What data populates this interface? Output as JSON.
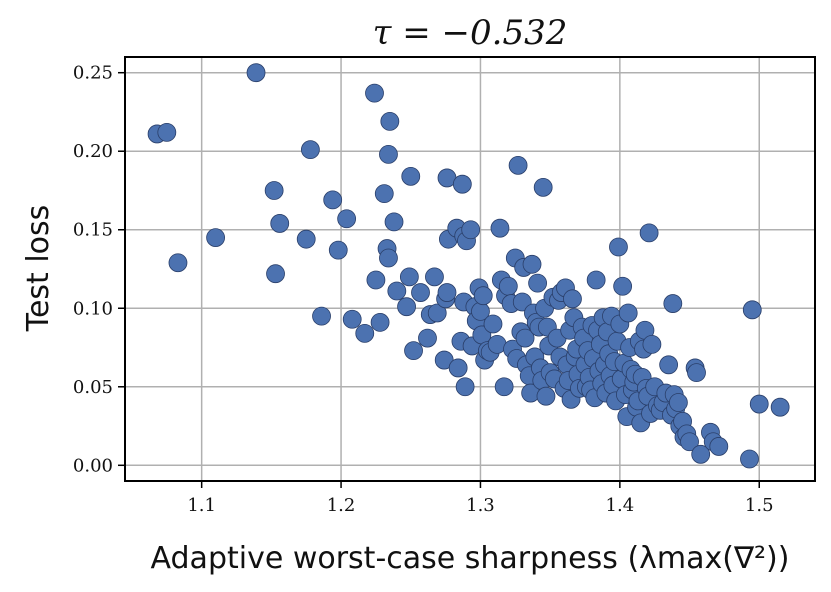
{
  "chart_data": {
    "type": "scatter",
    "title": "τ = −0.532",
    "xlabel": "Adaptive worst-case sharpness (λmax(∇²))",
    "ylabel": "Test loss",
    "xlim": [
      1.045,
      1.54
    ],
    "ylim": [
      -0.01,
      0.26
    ],
    "xticks": [
      1.1,
      1.2,
      1.3,
      1.4,
      1.5
    ],
    "xtick_labels": [
      "1.1",
      "1.2",
      "1.3",
      "1.4",
      "1.5"
    ],
    "yticks": [
      0.0,
      0.05,
      0.1,
      0.15,
      0.2,
      0.25
    ],
    "ytick_labels": [
      "0.00",
      "0.05",
      "0.10",
      "0.15",
      "0.20",
      "0.25"
    ],
    "grid": true,
    "marker_color": "#4c72b0",
    "points": [
      [
        1.068,
        0.211
      ],
      [
        1.075,
        0.212
      ],
      [
        1.083,
        0.129
      ],
      [
        1.11,
        0.145
      ],
      [
        1.139,
        0.25
      ],
      [
        1.152,
        0.175
      ],
      [
        1.153,
        0.122
      ],
      [
        1.156,
        0.154
      ],
      [
        1.175,
        0.144
      ],
      [
        1.178,
        0.201
      ],
      [
        1.186,
        0.095
      ],
      [
        1.194,
        0.169
      ],
      [
        1.198,
        0.137
      ],
      [
        1.204,
        0.157
      ],
      [
        1.208,
        0.093
      ],
      [
        1.217,
        0.084
      ],
      [
        1.224,
        0.237
      ],
      [
        1.225,
        0.118
      ],
      [
        1.228,
        0.091
      ],
      [
        1.231,
        0.173
      ],
      [
        1.233,
        0.138
      ],
      [
        1.234,
        0.132
      ],
      [
        1.234,
        0.198
      ],
      [
        1.235,
        0.219
      ],
      [
        1.238,
        0.155
      ],
      [
        1.24,
        0.111
      ],
      [
        1.247,
        0.101
      ],
      [
        1.249,
        0.12
      ],
      [
        1.25,
        0.184
      ],
      [
        1.252,
        0.073
      ],
      [
        1.257,
        0.11
      ],
      [
        1.262,
        0.081
      ],
      [
        1.264,
        0.096
      ],
      [
        1.267,
        0.12
      ],
      [
        1.269,
        0.097
      ],
      [
        1.274,
        0.067
      ],
      [
        1.275,
        0.106
      ],
      [
        1.276,
        0.11
      ],
      [
        1.277,
        0.144
      ],
      [
        1.276,
        0.183
      ],
      [
        1.283,
        0.151
      ],
      [
        1.284,
        0.062
      ],
      [
        1.286,
        0.079
      ],
      [
        1.287,
        0.179
      ],
      [
        1.288,
        0.104
      ],
      [
        1.288,
        0.146
      ],
      [
        1.289,
        0.05
      ],
      [
        1.29,
        0.143
      ],
      [
        1.293,
        0.15
      ],
      [
        1.294,
        0.076
      ],
      [
        1.296,
        0.101
      ],
      [
        1.297,
        0.092
      ],
      [
        1.299,
        0.113
      ],
      [
        1.3,
        0.098
      ],
      [
        1.301,
        0.083
      ],
      [
        1.302,
        0.108
      ],
      [
        1.303,
        0.067
      ],
      [
        1.305,
        0.073
      ],
      [
        1.307,
        0.072
      ],
      [
        1.309,
        0.09
      ],
      [
        1.312,
        0.077
      ],
      [
        1.314,
        0.151
      ],
      [
        1.315,
        0.118
      ],
      [
        1.317,
        0.05
      ],
      [
        1.318,
        0.108
      ],
      [
        1.32,
        0.114
      ],
      [
        1.322,
        0.103
      ],
      [
        1.323,
        0.074
      ],
      [
        1.325,
        0.132
      ],
      [
        1.326,
        0.068
      ],
      [
        1.327,
        0.191
      ],
      [
        1.329,
        0.085
      ],
      [
        1.33,
        0.104
      ],
      [
        1.331,
        0.126
      ],
      [
        1.332,
        0.081
      ],
      [
        1.333,
        0.064
      ],
      [
        1.335,
        0.057
      ],
      [
        1.336,
        0.046
      ],
      [
        1.337,
        0.128
      ],
      [
        1.338,
        0.097
      ],
      [
        1.339,
        0.069
      ],
      [
        1.34,
        0.091
      ],
      [
        1.341,
        0.116
      ],
      [
        1.342,
        0.088
      ],
      [
        1.343,
        0.062
      ],
      [
        1.344,
        0.054
      ],
      [
        1.345,
        0.177
      ],
      [
        1.346,
        0.1
      ],
      [
        1.347,
        0.044
      ],
      [
        1.348,
        0.088
      ],
      [
        1.349,
        0.076
      ],
      [
        1.35,
        0.059
      ],
      [
        1.352,
        0.107
      ],
      [
        1.353,
        0.055
      ],
      [
        1.355,
        0.081
      ],
      [
        1.356,
        0.105
      ],
      [
        1.357,
        0.069
      ],
      [
        1.358,
        0.11
      ],
      [
        1.36,
        0.049
      ],
      [
        1.361,
        0.113
      ],
      [
        1.362,
        0.064
      ],
      [
        1.363,
        0.054
      ],
      [
        1.364,
        0.086
      ],
      [
        1.365,
        0.042
      ],
      [
        1.366,
        0.106
      ],
      [
        1.367,
        0.094
      ],
      [
        1.368,
        0.069
      ],
      [
        1.369,
        0.074
      ],
      [
        1.37,
        0.058
      ],
      [
        1.371,
        0.049
      ],
      [
        1.373,
        0.088
      ],
      [
        1.374,
        0.081
      ],
      [
        1.375,
        0.064
      ],
      [
        1.376,
        0.05
      ],
      [
        1.377,
        0.073
      ],
      [
        1.378,
        0.056
      ],
      [
        1.379,
        0.048
      ],
      [
        1.38,
        0.089
      ],
      [
        1.381,
        0.068
      ],
      [
        1.382,
        0.043
      ],
      [
        1.383,
        0.118
      ],
      [
        1.384,
        0.086
      ],
      [
        1.385,
        0.06
      ],
      [
        1.386,
        0.077
      ],
      [
        1.387,
        0.052
      ],
      [
        1.388,
        0.094
      ],
      [
        1.389,
        0.064
      ],
      [
        1.39,
        0.046
      ],
      [
        1.391,
        0.085
      ],
      [
        1.392,
        0.071
      ],
      [
        1.393,
        0.057
      ],
      [
        1.394,
        0.095
      ],
      [
        1.395,
        0.051
      ],
      [
        1.396,
        0.066
      ],
      [
        1.397,
        0.041
      ],
      [
        1.398,
        0.079
      ],
      [
        1.399,
        0.139
      ],
      [
        1.4,
        0.09
      ],
      [
        1.401,
        0.055
      ],
      [
        1.402,
        0.114
      ],
      [
        1.403,
        0.065
      ],
      [
        1.404,
        0.045
      ],
      [
        1.405,
        0.031
      ],
      [
        1.406,
        0.097
      ],
      [
        1.407,
        0.075
      ],
      [
        1.408,
        0.061
      ],
      [
        1.409,
        0.048
      ],
      [
        1.41,
        0.053
      ],
      [
        1.411,
        0.058
      ],
      [
        1.412,
        0.037
      ],
      [
        1.413,
        0.041
      ],
      [
        1.414,
        0.079
      ],
      [
        1.415,
        0.027
      ],
      [
        1.416,
        0.056
      ],
      [
        1.417,
        0.074
      ],
      [
        1.418,
        0.086
      ],
      [
        1.419,
        0.049
      ],
      [
        1.42,
        0.044
      ],
      [
        1.421,
        0.148
      ],
      [
        1.422,
        0.033
      ],
      [
        1.423,
        0.077
      ],
      [
        1.425,
        0.05
      ],
      [
        1.427,
        0.038
      ],
      [
        1.429,
        0.035
      ],
      [
        1.431,
        0.04
      ],
      [
        1.433,
        0.046
      ],
      [
        1.435,
        0.064
      ],
      [
        1.437,
        0.032
      ],
      [
        1.438,
        0.103
      ],
      [
        1.439,
        0.045
      ],
      [
        1.44,
        0.036
      ],
      [
        1.442,
        0.04
      ],
      [
        1.443,
        0.025
      ],
      [
        1.445,
        0.028
      ],
      [
        1.446,
        0.018
      ],
      [
        1.448,
        0.02
      ],
      [
        1.45,
        0.015
      ],
      [
        1.454,
        0.062
      ],
      [
        1.455,
        0.059
      ],
      [
        1.458,
        0.007
      ],
      [
        1.465,
        0.021
      ],
      [
        1.467,
        0.015
      ],
      [
        1.471,
        0.012
      ],
      [
        1.493,
        0.004
      ],
      [
        1.495,
        0.099
      ],
      [
        1.5,
        0.039
      ],
      [
        1.515,
        0.037
      ]
    ]
  }
}
